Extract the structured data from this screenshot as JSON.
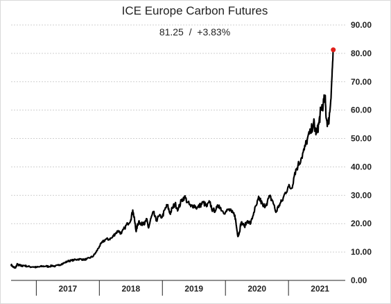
{
  "chart_data": {
    "type": "line",
    "title": "ICE Europe Carbon Futures",
    "subtitle": "81.25  /  +3.83%",
    "xlabel": "",
    "ylabel": "",
    "ylim": [
      0,
      90
    ],
    "yticks": [
      "0.00",
      "10.00",
      "20.00",
      "30.00",
      "40.00",
      "50.00",
      "60.00",
      "70.00",
      "80.00",
      "90.00"
    ],
    "xlim": [
      2016.6,
      2021.9
    ],
    "year_labels": [
      "2017",
      "2018",
      "2019",
      "2020",
      "2021"
    ],
    "grid": "horizontal",
    "last_point": {
      "x": 2021.71,
      "y": 81.25,
      "color": "#e0201b"
    },
    "line_color": "#000000",
    "series": [
      {
        "x": [
          2016.6,
          2016.62,
          2016.64,
          2016.66,
          2016.68,
          2016.7,
          2016.72,
          2016.74,
          2016.76,
          2016.8,
          2016.85,
          2016.9,
          2016.95,
          2017.0,
          2017.05,
          2017.1,
          2017.15,
          2017.2,
          2017.25,
          2017.3,
          2017.35,
          2017.4,
          2017.45,
          2017.5,
          2017.55,
          2017.6,
          2017.65,
          2017.7,
          2017.75,
          2017.8,
          2017.85,
          2017.9,
          2017.95,
          2018.0,
          2018.05,
          2018.1,
          2018.15,
          2018.2,
          2018.25,
          2018.3,
          2018.35,
          2018.4,
          2018.45,
          2018.5,
          2018.53,
          2018.56,
          2018.58,
          2018.6,
          2018.63,
          2018.66,
          2018.7,
          2018.72,
          2018.75,
          2018.78,
          2018.82,
          2018.86,
          2018.9,
          2018.94,
          2019.0,
          2019.04,
          2019.08,
          2019.12,
          2019.16,
          2019.2,
          2019.25,
          2019.3,
          2019.35,
          2019.4,
          2019.45,
          2019.5,
          2019.55,
          2019.6,
          2019.65,
          2019.7,
          2019.75,
          2019.8,
          2019.85,
          2019.9,
          2019.95,
          2020.0,
          2020.05,
          2020.1,
          2020.15,
          2020.18,
          2020.2,
          2020.22,
          2020.25,
          2020.3,
          2020.35,
          2020.4,
          2020.45,
          2020.5,
          2020.53,
          2020.56,
          2020.6,
          2020.65,
          2020.7,
          2020.75,
          2020.8,
          2020.85,
          2020.9,
          2020.95,
          2021.0,
          2021.05,
          2021.1,
          2021.15,
          2021.2,
          2021.25,
          2021.3,
          2021.35,
          2021.4,
          2021.42,
          2021.45,
          2021.48,
          2021.5,
          2021.52,
          2021.55,
          2021.58,
          2021.6,
          2021.63,
          2021.66,
          2021.69,
          2021.71
        ],
        "values": [
          5.6,
          5.0,
          4.6,
          4.5,
          4.8,
          5.8,
          5.2,
          5.6,
          5.0,
          5.3,
          5.0,
          4.8,
          4.8,
          4.6,
          4.8,
          5.0,
          5.0,
          4.9,
          5.2,
          5.0,
          5.3,
          5.8,
          6.2,
          6.8,
          7.0,
          7.2,
          7.4,
          7.5,
          7.3,
          7.5,
          8.0,
          8.5,
          10.0,
          12.0,
          13.5,
          14.5,
          14.5,
          15.0,
          16.5,
          17.5,
          16.5,
          18.5,
          20.0,
          21.5,
          24.8,
          21.0,
          17.5,
          19.0,
          21.0,
          19.5,
          20.5,
          20.0,
          21.5,
          18.5,
          22.0,
          24.0,
          21.0,
          22.5,
          22.5,
          25.0,
          26.5,
          23.5,
          25.5,
          27.0,
          25.0,
          28.0,
          29.5,
          27.5,
          26.0,
          26.5,
          25.5,
          26.5,
          27.5,
          26.0,
          27.5,
          24.5,
          25.0,
          26.5,
          24.5,
          24.0,
          25.0,
          24.0,
          23.0,
          18.0,
          15.5,
          17.0,
          20.5,
          19.0,
          21.0,
          20.0,
          24.0,
          27.0,
          29.0,
          28.0,
          26.0,
          27.0,
          29.5,
          28.0,
          24.0,
          26.5,
          28.0,
          31.0,
          33.0,
          32.5,
          38.0,
          40.5,
          43.0,
          46.0,
          50.0,
          52.0,
          56.0,
          53.0,
          52.0,
          55.0,
          58.0,
          61.0,
          62.0,
          64.5,
          57.0,
          55.0,
          60.5,
          72.0,
          81.25
        ]
      }
    ]
  }
}
